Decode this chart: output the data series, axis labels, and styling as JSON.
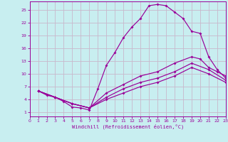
{
  "background_color": "#c8eef0",
  "grid_color": "#b0d8dc",
  "line_color": "#990099",
  "xlim": [
    0,
    23
  ],
  "ylim": [
    0,
    27
  ],
  "xticks": [
    0,
    1,
    2,
    3,
    4,
    5,
    6,
    7,
    8,
    9,
    10,
    11,
    12,
    13,
    14,
    15,
    16,
    17,
    18,
    19,
    20,
    21,
    22,
    23
  ],
  "yticks": [
    1,
    4,
    7,
    10,
    13,
    16,
    19,
    22,
    25
  ],
  "xlabel": "Windchill (Refroidissement éolien,°C)",
  "curves": [
    {
      "x": [
        1,
        2,
        3,
        4,
        5,
        6,
        7,
        8,
        9,
        10,
        11,
        12,
        13,
        14,
        15,
        16,
        17,
        18,
        19,
        20,
        21,
        22,
        23
      ],
      "y": [
        6.0,
        5.0,
        4.5,
        3.5,
        2.2,
        2.0,
        1.5,
        6.5,
        12.0,
        15.0,
        18.5,
        21.0,
        23.0,
        26.0,
        26.3,
        26.0,
        24.5,
        23.0,
        20.0,
        19.5,
        14.0,
        11.0,
        9.0
      ]
    },
    {
      "x": [
        1,
        3,
        5,
        7,
        9,
        11,
        13,
        15,
        17,
        19,
        20,
        21,
        22,
        23
      ],
      "y": [
        6.0,
        4.5,
        3.0,
        2.0,
        5.5,
        7.5,
        9.5,
        10.5,
        12.5,
        14.0,
        13.5,
        11.5,
        10.5,
        9.5
      ]
    },
    {
      "x": [
        1,
        3,
        5,
        7,
        9,
        11,
        13,
        15,
        17,
        19,
        21,
        23
      ],
      "y": [
        6.0,
        4.5,
        3.0,
        2.0,
        4.5,
        6.5,
        8.0,
        9.0,
        10.5,
        12.5,
        11.0,
        8.5
      ]
    },
    {
      "x": [
        1,
        3,
        5,
        7,
        9,
        11,
        13,
        15,
        17,
        19,
        21,
        23
      ],
      "y": [
        6.0,
        4.5,
        3.0,
        2.0,
        4.0,
        5.5,
        7.0,
        8.0,
        9.5,
        11.5,
        10.0,
        8.0
      ]
    }
  ]
}
